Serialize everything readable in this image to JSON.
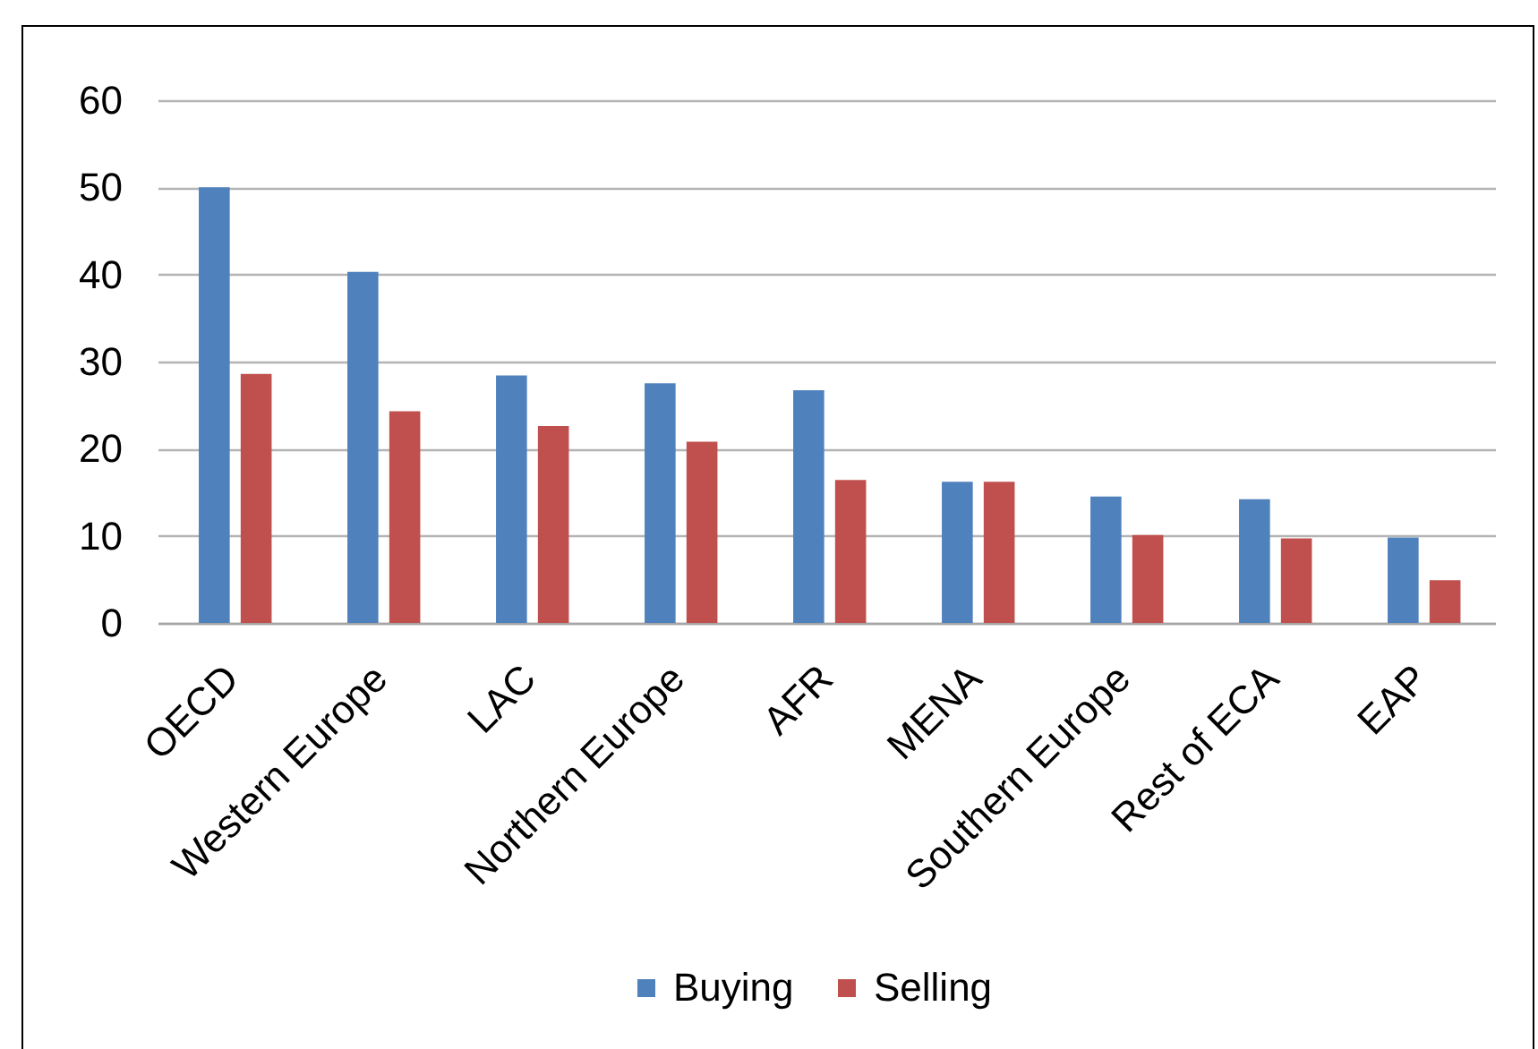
{
  "chart_data": {
    "type": "bar",
    "categories": [
      "OECD",
      "Western Europe",
      "LAC",
      "Northern Europe",
      "AFR",
      "MENA",
      "Southern Europe",
      "Rest of ECA",
      "EAP"
    ],
    "series": [
      {
        "name": "Buying",
        "color": "#4f81bd",
        "values": [
          50,
          40.3,
          28.4,
          27.5,
          26.7,
          16.2,
          14.5,
          14.2,
          9.8
        ]
      },
      {
        "name": "Selling",
        "color": "#c0504d",
        "values": [
          28.6,
          24.3,
          22.6,
          20.8,
          16.4,
          16.2,
          10.1,
          9.7,
          4.9
        ]
      }
    ],
    "ylim": [
      0,
      60
    ],
    "yticks": [
      0,
      10,
      20,
      30,
      40,
      50,
      60
    ],
    "grid": "y",
    "legend": "bottom"
  }
}
